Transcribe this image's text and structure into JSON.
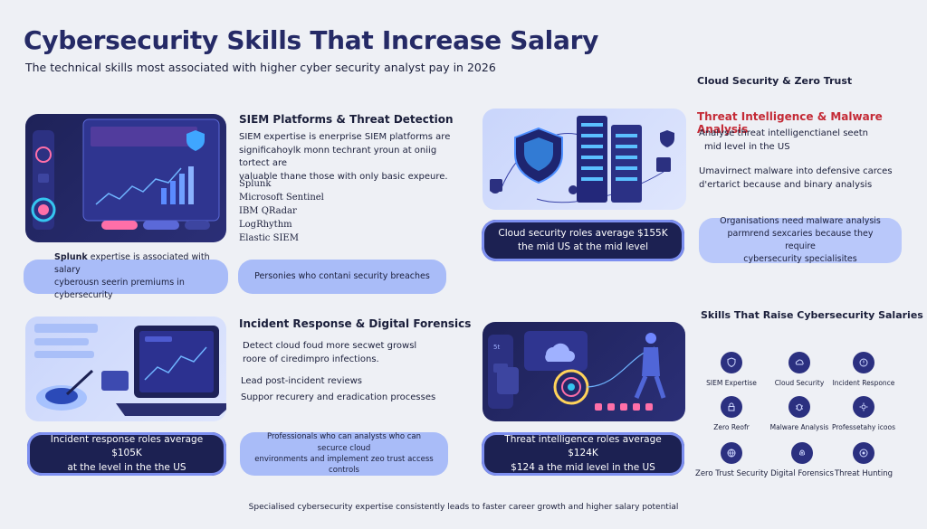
{
  "header": {
    "title": "Cybersecurity Skills That Increase Salary",
    "subtitle": "The technical skills most associated with higher cyber security analyst pay in 2026"
  },
  "siem": {
    "title": "SIEM Platforms & Threat Detection",
    "desc_lines": [
      "SIEM expertise is enerprise SIEM platforms are",
      "significahoylk monn techrant yroun at oniig tortect are",
      "valuable thane those with only basic expeure."
    ],
    "tools": [
      "Splunk",
      "Microsoft Sentinel",
      "IBM QRadar",
      "LogRhythm",
      "Elastic SIEM"
    ],
    "pill_left": {
      "bold": "Splunk",
      "rest_line1": " expertise is associated with salary",
      "line2": "cyberousn seerin premiums in cybersecurity"
    },
    "pill_right": "Personies who contani security breaches"
  },
  "cloud": {
    "heading": "Cloud Security & Zero Trust",
    "stat_lines": [
      "Cloud security roles average $155K",
      "the mid US at the mid level"
    ]
  },
  "threat_intel": {
    "title": "Threat Intelligence & Malware Analysis",
    "lines_a": [
      "Analyse threat intelligenctianel seetn",
      "mid level in the US"
    ],
    "lines_b": [
      "Umavirnect malware into defensive carces",
      "d'ertarict because and binary analysis"
    ],
    "pill_lines": [
      "Organisations need malware analysis",
      "parmrend sexcaries because they require",
      "cybersecurity specialisites"
    ]
  },
  "incident": {
    "title": "Incident Response & Digital Forensics",
    "lines": [
      "Detect cloud foud more secwet growsl",
      "roore of ciredimpro infections."
    ],
    "lines_b": [
      "Lead post-incident reviews",
      "Suppor recurery and eradication processes"
    ],
    "stat_lines": [
      "Incident response roles average $105K",
      "at the level in the the US"
    ],
    "pill_lines": [
      "Professionals who can analysts who can securce cloud",
      "environments and implement zeo trust access controls"
    ]
  },
  "threat_stat": {
    "stat_lines": [
      "Threat intelligence roles average $124K",
      "$124 a the mid level in the US"
    ]
  },
  "skills_grid": {
    "heading": "Skills That Raise Cybersecurity Salaries",
    "items": [
      {
        "label": "SIEM Expertise",
        "icon": "shield-icon"
      },
      {
        "label": "Cloud Security",
        "icon": "cloud-icon"
      },
      {
        "label": "Incident Responce",
        "icon": "alert-icon"
      },
      {
        "label": "Zero Reofr",
        "icon": "lock-icon"
      },
      {
        "label": "Malware Analysis",
        "icon": "bug-icon"
      },
      {
        "label": "Professetahy icoos",
        "icon": "gear-icon"
      },
      {
        "label": "Zero Trust Security",
        "icon": "globe-icon"
      },
      {
        "label": "Digital Forensics",
        "icon": "fingerprint-icon"
      },
      {
        "label": "Threat Hunting",
        "icon": "target-icon"
      }
    ]
  },
  "footer": "Specialised cybersecurity expertise consistently leads to faster career growth and higher salary potential",
  "colors": {
    "navy": "#1c2152",
    "accent": "#7d8ff0",
    "light_pill": "#a9bcf8",
    "red": "#c42a36"
  }
}
